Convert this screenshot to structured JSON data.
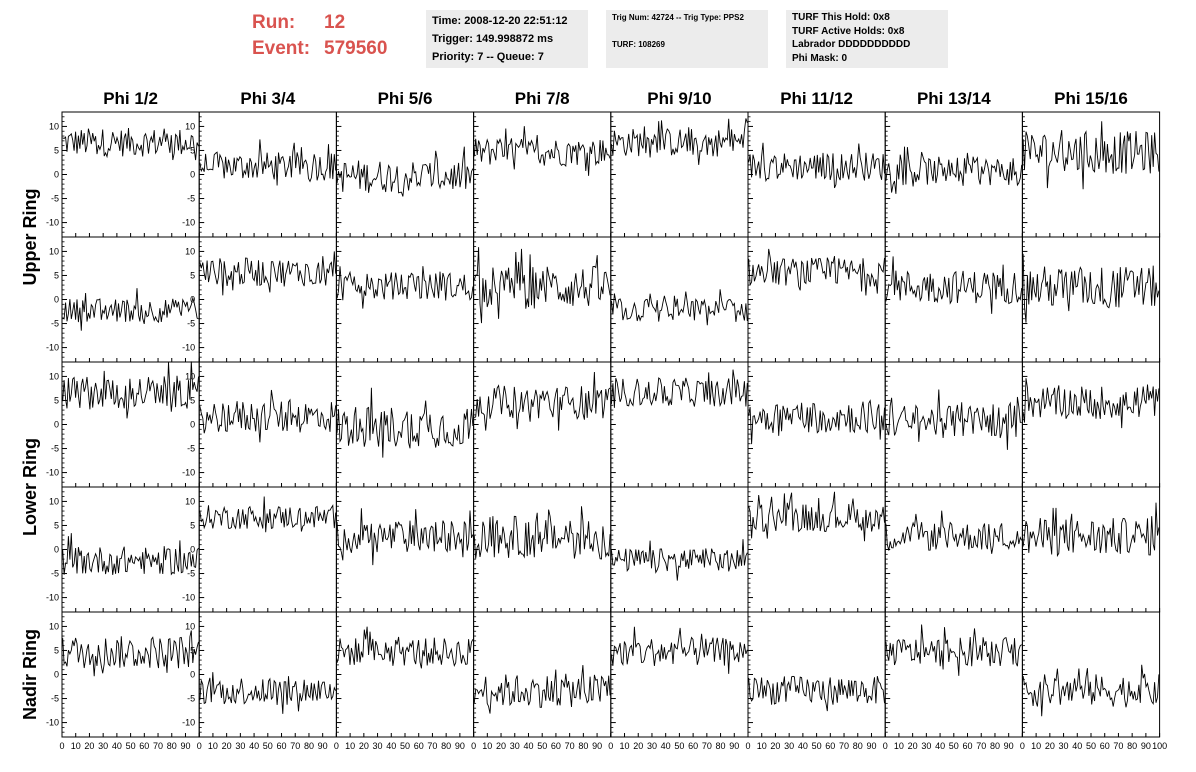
{
  "header": {
    "run_label": "Run:",
    "run_value": "12",
    "event_label": "Event:",
    "event_value": "579560",
    "time_info": {
      "time": "Time: 2008-12-20 22:51:12",
      "trigger": "Trigger: 149.998872 ms",
      "priority": "Priority: 7 -- Queue: 7"
    },
    "trig_info": {
      "trig": "Trig Num: 42724 -- Trig Type: PPS2",
      "turf": "TURF: 108269"
    },
    "turf_info": {
      "hold": "TURF This Hold: 0x8",
      "active": "TURF Active Holds: 0x8",
      "labrador": "Labrador DDDDDDDDDD",
      "phimask": "Phi Mask: 0"
    }
  },
  "chart_data": {
    "type": "line",
    "columns": [
      "Phi 1/2",
      "Phi 3/4",
      "Phi 5/6",
      "Phi 7/8",
      "Phi 9/10",
      "Phi 11/12",
      "Phi 13/14",
      "Phi 15/16"
    ],
    "ring_labels": [
      {
        "label": "Upper Ring",
        "rows": [
          0,
          1
        ]
      },
      {
        "label": "Lower Ring",
        "rows": [
          2,
          3
        ]
      },
      {
        "label": "Nadir Ring",
        "rows": [
          4
        ]
      }
    ],
    "xlim": [
      0,
      100
    ],
    "ylim": [
      -13,
      13
    ],
    "x_ticks": [
      0,
      10,
      20,
      30,
      40,
      50,
      60,
      70,
      80,
      90,
      100
    ],
    "y_ticks": [
      10,
      5,
      0,
      -5,
      -10
    ],
    "samples_per_trace": 96,
    "rows": [
      {
        "baselines": [
          7,
          2,
          0,
          5,
          7,
          2,
          1,
          5
        ],
        "noise": [
          6,
          6,
          7,
          6,
          6,
          6,
          6,
          9
        ]
      },
      {
        "baselines": [
          -2,
          6,
          3,
          3,
          -2,
          6,
          3,
          3
        ],
        "noise": [
          5,
          6,
          6,
          9,
          5,
          6,
          7,
          9
        ]
      },
      {
        "baselines": [
          7,
          2,
          0,
          5,
          7,
          2,
          1,
          5
        ],
        "noise": [
          7,
          7,
          9,
          7,
          6,
          7,
          7,
          7
        ]
      },
      {
        "baselines": [
          -2,
          7,
          3,
          3,
          -2,
          7,
          3,
          3
        ],
        "noise": [
          6,
          5,
          7,
          9,
          5,
          6,
          6,
          8
        ]
      },
      {
        "baselines": [
          5,
          -3,
          5,
          -3,
          5,
          -3,
          5,
          -3
        ],
        "noise": [
          7,
          6,
          6,
          7,
          6,
          6,
          6,
          7
        ]
      }
    ]
  }
}
